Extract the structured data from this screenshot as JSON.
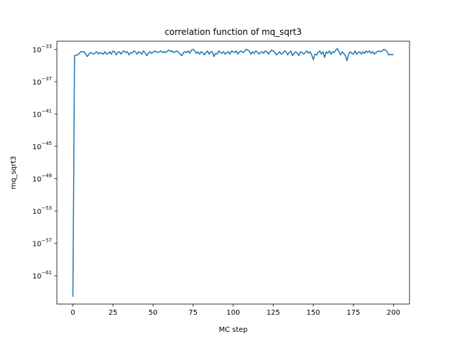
{
  "chart_data": {
    "type": "line",
    "title": "correlation function of mq_sqrt3",
    "xlabel": "MC step",
    "ylabel": "mq_sqrt3",
    "yscale": "log",
    "xlim": [
      -10,
      210
    ],
    "ylim_log10": [
      -64.5,
      -32
    ],
    "xticks": [
      0,
      25,
      50,
      75,
      100,
      125,
      150,
      175,
      200
    ],
    "yticks": [
      {
        "base": "10",
        "exp": "−33",
        "log10": -33
      },
      {
        "base": "10",
        "exp": "−37",
        "log10": -37
      },
      {
        "base": "10",
        "exp": "−41",
        "log10": -41
      },
      {
        "base": "10",
        "exp": "−45",
        "log10": -45
      },
      {
        "base": "10",
        "exp": "−49",
        "log10": -49
      },
      {
        "base": "10",
        "exp": "−53",
        "log10": -53
      },
      {
        "base": "10",
        "exp": "−57",
        "log10": -57
      },
      {
        "base": "10",
        "exp": "−61",
        "log10": -61
      }
    ],
    "grid": false,
    "line_color": "#1f77b4",
    "series": [
      {
        "x": [
          0,
          1,
          2,
          3,
          4,
          5,
          6,
          7,
          8,
          9,
          10,
          11,
          12,
          13,
          14,
          15,
          16,
          17,
          18,
          19,
          20,
          21,
          22,
          23,
          24,
          25,
          26,
          27,
          28,
          29,
          30,
          31,
          32,
          33,
          34,
          35,
          36,
          37,
          38,
          39,
          40,
          41,
          42,
          43,
          44,
          45,
          46,
          47,
          48,
          49,
          50,
          51,
          52,
          53,
          54,
          55,
          56,
          57,
          58,
          59,
          60,
          61,
          62,
          63,
          64,
          65,
          66,
          67,
          68,
          69,
          70,
          71,
          72,
          73,
          74,
          75,
          76,
          77,
          78,
          79,
          80,
          81,
          82,
          83,
          84,
          85,
          86,
          87,
          88,
          89,
          90,
          91,
          92,
          93,
          94,
          95,
          96,
          97,
          98,
          99,
          100,
          101,
          102,
          103,
          104,
          105,
          106,
          107,
          108,
          109,
          110,
          111,
          112,
          113,
          114,
          115,
          116,
          117,
          118,
          119,
          120,
          121,
          122,
          123,
          124,
          125,
          126,
          127,
          128,
          129,
          130,
          131,
          132,
          133,
          134,
          135,
          136,
          137,
          138,
          139,
          140,
          141,
          142,
          143,
          144,
          145,
          146,
          147,
          148,
          149,
          150,
          151,
          152,
          153,
          154,
          155,
          156,
          157,
          158,
          159,
          160,
          161,
          162,
          163,
          164,
          165,
          166,
          167,
          168,
          169,
          170,
          171,
          172,
          173,
          174,
          175,
          176,
          177,
          178,
          179,
          180,
          181,
          182,
          183,
          184,
          185,
          186,
          187,
          188,
          189,
          190,
          191,
          192,
          193,
          194,
          195,
          196,
          197,
          198,
          199,
          200
        ],
        "log10_y": [
          -63.6,
          -33.8,
          -33.7,
          -33.7,
          -33.5,
          -33.3,
          -33.3,
          -33.3,
          -33.6,
          -33.9,
          -33.6,
          -33.4,
          -33.5,
          -33.6,
          -33.4,
          -33.3,
          -33.6,
          -33.4,
          -33.5,
          -33.6,
          -33.3,
          -33.6,
          -33.5,
          -33.3,
          -33.6,
          -33.2,
          -33.3,
          -33.7,
          -33.4,
          -33.3,
          -33.6,
          -33.3,
          -33.2,
          -33.4,
          -33.3,
          -33.7,
          -33.4,
          -33.5,
          -33.2,
          -33.3,
          -33.6,
          -33.3,
          -33.4,
          -33.6,
          -33.2,
          -33.4,
          -33.8,
          -33.5,
          -33.3,
          -33.5,
          -33.4,
          -33.2,
          -33.3,
          -33.4,
          -33.3,
          -33.2,
          -33.4,
          -33.3,
          -33.4,
          -33.2,
          -33.1,
          -33.3,
          -33.2,
          -33.4,
          -33.3,
          -33.2,
          -33.4,
          -33.6,
          -33.8,
          -33.4,
          -33.3,
          -33.4,
          -33.2,
          -33.5,
          -33.1,
          -33.0,
          -33.2,
          -33.5,
          -33.3,
          -33.6,
          -33.3,
          -33.4,
          -33.7,
          -33.4,
          -33.2,
          -33.6,
          -33.3,
          -33.3,
          -33.9,
          -33.5,
          -33.6,
          -33.2,
          -33.4,
          -33.5,
          -33.3,
          -33.6,
          -33.4,
          -33.3,
          -33.6,
          -33.2,
          -33.3,
          -33.4,
          -33.2,
          -33.6,
          -33.3,
          -33.2,
          -33.4,
          -33.3,
          -33.0,
          -33.1,
          -33.2,
          -33.6,
          -33.3,
          -33.5,
          -33.2,
          -33.3,
          -33.6,
          -33.4,
          -33.3,
          -33.5,
          -33.2,
          -33.3,
          -33.6,
          -33.3,
          -33.1,
          -33.2,
          -33.4,
          -33.7,
          -33.5,
          -33.3,
          -33.6,
          -33.5,
          -33.2,
          -33.3,
          -33.7,
          -33.4,
          -33.2,
          -33.8,
          -33.5,
          -33.3,
          -33.5,
          -33.8,
          -33.3,
          -33.4,
          -33.6,
          -33.4,
          -33.2,
          -33.5,
          -33.3,
          -33.7,
          -34.3,
          -33.6,
          -33.7,
          -33.4,
          -33.2,
          -33.6,
          -33.3,
          -34.0,
          -33.3,
          -33.5,
          -33.2,
          -33.6,
          -33.3,
          -33.4,
          -33.1,
          -32.9,
          -33.3,
          -33.7,
          -33.3,
          -33.5,
          -33.8,
          -34.4,
          -33.6,
          -33.3,
          -33.5,
          -33.6,
          -33.2,
          -33.6,
          -33.4,
          -33.3,
          -33.6,
          -33.3,
          -33.5,
          -33.2,
          -33.4,
          -33.2,
          -33.5,
          -33.3,
          -33.6,
          -33.4,
          -33.3,
          -33.2,
          -33.3,
          -33.2,
          -33.0,
          -33.1,
          -33.3,
          -33.7,
          -33.6,
          -33.7,
          -33.6,
          -33.7
        ]
      }
    ]
  }
}
